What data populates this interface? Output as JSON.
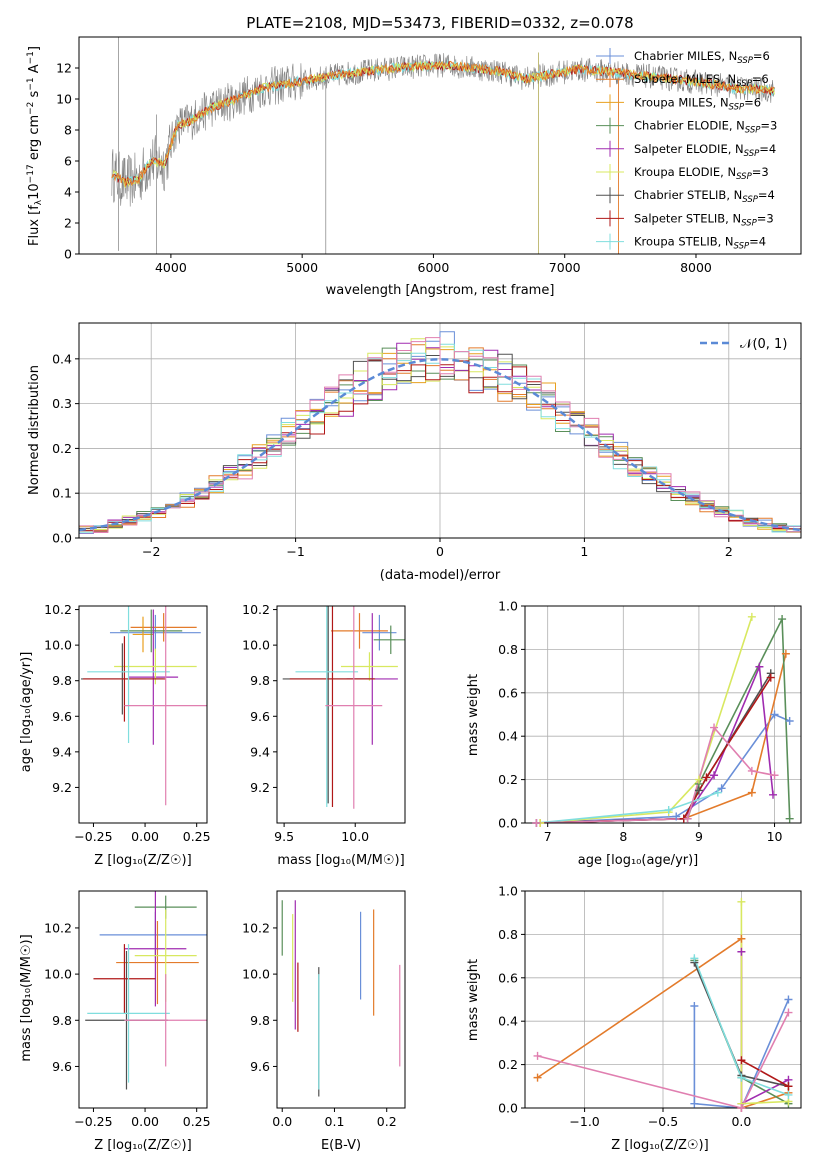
{
  "title": "PLATE=2108, MJD=53473, FIBERID=0332, z=0.078",
  "models": [
    {
      "name": "Chabrier MILES",
      "nssp": "6",
      "color": "#6a8fd8"
    },
    {
      "name": "Salpeter MILES",
      "nssp": "6",
      "color": "#e37b2b"
    },
    {
      "name": "Kroupa MILES",
      "nssp": "6",
      "color": "#e8a020"
    },
    {
      "name": "Chabrier ELODIE",
      "nssp": "3",
      "color": "#5a8f5a"
    },
    {
      "name": "Salpeter ELODIE",
      "nssp": "4",
      "color": "#a02cb0"
    },
    {
      "name": "Kroupa ELODIE",
      "nssp": "3",
      "color": "#d8e860"
    },
    {
      "name": "Chabrier STELIB",
      "nssp": "4",
      "color": "#505050"
    },
    {
      "name": "Salpeter STELIB",
      "nssp": "3",
      "color": "#b01818"
    },
    {
      "name": "Kroupa STELIB",
      "nssp": "4",
      "color": "#80dede"
    }
  ],
  "chart_data": [
    {
      "type": "line",
      "panel": "spectrum",
      "xlabel": "wavelength [Angstrom, rest frame]",
      "ylabel_main": "Flux [f",
      "ylabel_sub": "λ",
      "ylabel_mid": "10",
      "ylabel_sup1": "−17",
      "ylabel_rest": " erg cm",
      "ylabel_sup2": "−2",
      "ylabel_rest2": " s",
      "ylabel_sup3": "−1",
      "ylabel_rest3": " A",
      "ylabel_sup4": "−1",
      "ylabel_end": "]",
      "xlim": [
        3300,
        8800
      ],
      "ylim": [
        0,
        14
      ],
      "xticks": [
        4000,
        5000,
        6000,
        7000,
        8000
      ],
      "yticks": [
        0,
        2,
        4,
        6,
        8,
        10,
        12
      ],
      "model_curve": {
        "x": [
          3550,
          3650,
          3750,
          3850,
          3950,
          4050,
          4150,
          4300,
          4500,
          4700,
          4900,
          5100,
          5300,
          5500,
          5700,
          5900,
          6100,
          6300,
          6500,
          6700,
          6900,
          7100,
          7300,
          7500,
          7700,
          7900,
          8100,
          8300,
          8500,
          8600
        ],
        "y": [
          5.2,
          4.6,
          4.8,
          6.0,
          5.8,
          8.3,
          8.6,
          9.4,
          10.0,
          10.7,
          11.0,
          11.3,
          11.6,
          11.8,
          12.0,
          12.1,
          12.2,
          12.0,
          11.8,
          11.3,
          11.6,
          11.9,
          11.8,
          11.6,
          11.4,
          11.2,
          11.0,
          10.7,
          10.6,
          10.5
        ]
      }
    },
    {
      "type": "line",
      "panel": "residuals",
      "xlabel": "(data-model)/error",
      "ylabel": "Normed distribution",
      "legend_label": "𝒩(0, 1)",
      "xlim": [
        -2.5,
        2.5
      ],
      "ylim": [
        0,
        0.48
      ],
      "xticks": [
        -2,
        -1,
        0,
        1,
        2
      ],
      "xticklabels": [
        "−2",
        "−1",
        "0",
        "1",
        "2"
      ],
      "yticks": [
        0.0,
        0.1,
        0.2,
        0.3,
        0.4
      ],
      "yticklabels": [
        "0.0",
        "0.1",
        "0.2",
        "0.3",
        "0.4"
      ]
    },
    {
      "type": "scatter",
      "panel": "age-Z",
      "xlabel": "Z [log₁₀(Z/Z☉)]",
      "ylabel": "age  [log₁₀(age/yr)]",
      "xlim": [
        -0.32,
        0.3
      ],
      "ylim": [
        9.0,
        10.22
      ],
      "xticks": [
        -0.25,
        0.0,
        0.25
      ],
      "xticklabels": [
        "−0.25",
        "0.00",
        "0.25"
      ],
      "yticks": [
        9.2,
        9.4,
        9.6,
        9.8,
        10.0,
        10.2
      ],
      "yticklabels": [
        "9.2",
        "9.4",
        "9.6",
        "9.8",
        "10.0",
        "10.2"
      ],
      "points": [
        {
          "m": 0,
          "x": 0.05,
          "y": 10.07,
          "xerr": 0.22,
          "yerr": 0.1
        },
        {
          "m": 1,
          "x": 0.09,
          "y": 10.1,
          "xerr": 0.16,
          "yerr": 0.08
        },
        {
          "m": 2,
          "x": -0.01,
          "y": 10.06,
          "xerr": 0.05,
          "yerr": 0.1
        },
        {
          "m": 3,
          "x": 0.03,
          "y": 10.08,
          "xerr": 0.15,
          "yerr": 0.12
        },
        {
          "m": 4,
          "x": 0.04,
          "y": 9.82,
          "xerr": 0.12,
          "yerr": 0.38
        },
        {
          "m": 5,
          "x": 0.05,
          "y": 9.88,
          "xerr": 0.2,
          "yerr": 0.1
        },
        {
          "m": 6,
          "x": -0.11,
          "y": 9.81,
          "xerr": 0.2,
          "yerr": 0.2
        },
        {
          "m": 7,
          "x": -0.1,
          "y": 9.81,
          "xerr": 0.2,
          "yerr": 0.24
        },
        {
          "m": 8,
          "x": -0.08,
          "y": 9.85,
          "xerr": 0.2,
          "yerr": 0.4
        },
        {
          "m": 99,
          "x": 0.1,
          "y": 9.66,
          "xerr": 0.2,
          "yerr": 0.56
        }
      ]
    },
    {
      "type": "scatter",
      "panel": "age-mass",
      "xlabel": "mass [log₁₀(M/M☉)]",
      "xlim": [
        9.45,
        10.35
      ],
      "ylim": [
        9.0,
        10.22
      ],
      "xticks": [
        9.5,
        10.0
      ],
      "xticklabels": [
        "9.5",
        "10.0"
      ],
      "yticks": [
        9.2,
        9.4,
        9.6,
        9.8,
        10.0,
        10.2
      ],
      "yticklabels": [
        "9.2",
        "9.4",
        "9.6",
        "9.8",
        "10.0",
        "10.2"
      ],
      "points": [
        {
          "m": 0,
          "x": 10.17,
          "y": 10.07,
          "xerr": 0.12,
          "yerr": 0.1
        },
        {
          "m": 1,
          "x": 10.03,
          "y": 10.08,
          "xerr": 0.2,
          "yerr": 0.1
        },
        {
          "m": 3,
          "x": 10.25,
          "y": 10.03,
          "xerr": 0.12,
          "yerr": 0.08
        },
        {
          "m": 4,
          "x": 10.12,
          "y": 9.81,
          "xerr": 0.18,
          "yerr": 0.37
        },
        {
          "m": 5,
          "x": 10.1,
          "y": 9.88,
          "xerr": 0.2,
          "yerr": 0.08
        },
        {
          "m": 6,
          "x": 9.81,
          "y": 9.81,
          "xerr": 0.32,
          "yerr": 0.7
        },
        {
          "m": 7,
          "x": 9.84,
          "y": 9.81,
          "xerr": 0.3,
          "yerr": 0.72
        },
        {
          "m": 8,
          "x": 9.8,
          "y": 9.85,
          "xerr": 0.22,
          "yerr": 0.76
        },
        {
          "m": 99,
          "x": 9.99,
          "y": 9.66,
          "xerr": 0.2,
          "yerr": 0.58
        }
      ]
    },
    {
      "type": "line",
      "panel": "weight-age",
      "xlabel": "age  [log₁₀(age/yr)]",
      "ylabel": "mass weight",
      "xlim": [
        6.7,
        10.35
      ],
      "ylim": [
        0,
        1
      ],
      "xticks": [
        7,
        8,
        9,
        10
      ],
      "yticks": [
        0.0,
        0.2,
        0.4,
        0.6,
        0.8,
        1.0
      ],
      "yticklabels": [
        "0.0",
        "0.2",
        "0.4",
        "0.6",
        "0.8",
        "1.0"
      ],
      "series": [
        {
          "m": 0,
          "x": [
            6.85,
            8.7,
            9.3,
            10.0,
            10.2
          ],
          "y": [
            0.0,
            0.03,
            0.16,
            0.5,
            0.47
          ]
        },
        {
          "m": 1,
          "x": [
            6.9,
            8.8,
            9.7,
            10.15
          ],
          "y": [
            0.0,
            0.02,
            0.14,
            0.78
          ]
        },
        {
          "m": 3,
          "x": [
            6.85,
            8.85,
            9.0,
            10.1,
            10.2
          ],
          "y": [
            0.0,
            0.02,
            0.18,
            0.94,
            0.02
          ]
        },
        {
          "m": 4,
          "x": [
            6.85,
            8.8,
            9.2,
            9.8,
            9.98
          ],
          "y": [
            0.0,
            0.02,
            0.22,
            0.72,
            0.13
          ]
        },
        {
          "m": 5,
          "x": [
            6.9,
            8.6,
            9.0,
            9.7
          ],
          "y": [
            0.0,
            0.05,
            0.2,
            0.95
          ]
        },
        {
          "m": 6,
          "x": [
            6.85,
            8.8,
            9.0,
            9.95
          ],
          "y": [
            0.0,
            0.02,
            0.15,
            0.69
          ]
        },
        {
          "m": 7,
          "x": [
            6.85,
            8.8,
            9.1,
            9.95
          ],
          "y": [
            0.0,
            0.02,
            0.21,
            0.67
          ]
        },
        {
          "m": 8,
          "x": [
            6.85,
            8.6,
            9.25
          ],
          "y": [
            0.0,
            0.06,
            0.14
          ]
        },
        {
          "m": 99,
          "x": [
            6.85,
            8.85,
            9.2,
            9.7,
            10.0
          ],
          "y": [
            0.0,
            0.02,
            0.44,
            0.24,
            0.22
          ]
        }
      ]
    },
    {
      "type": "scatter",
      "panel": "mass-Z",
      "xlabel": "Z [log₁₀(Z/Z☉)]",
      "ylabel": "mass [log₁₀(M/M☉)]",
      "xlim": [
        -0.32,
        0.3
      ],
      "ylim": [
        9.42,
        10.36
      ],
      "xticks": [
        -0.25,
        0.0,
        0.25
      ],
      "xticklabels": [
        "−0.25",
        "0.00",
        "0.25"
      ],
      "yticks": [
        9.6,
        9.8,
        10.0,
        10.2
      ],
      "yticklabels": [
        "9.6",
        "9.8",
        "10.0",
        "10.2"
      ],
      "points": [
        {
          "m": 0,
          "x": 0.05,
          "y": 10.17,
          "xerr": 0.27,
          "yerr": 0.1
        },
        {
          "m": 1,
          "x": 0.06,
          "y": 10.05,
          "xerr": 0.2,
          "yerr": 0.18
        },
        {
          "m": 3,
          "x": 0.1,
          "y": 10.29,
          "xerr": 0.15,
          "yerr": 0.05
        },
        {
          "m": 4,
          "x": 0.05,
          "y": 10.11,
          "xerr": 0.15,
          "yerr": 0.25
        },
        {
          "m": 5,
          "x": 0.1,
          "y": 10.08,
          "xerr": 0.15,
          "yerr": 0.2
        },
        {
          "m": 6,
          "x": -0.09,
          "y": 9.8,
          "xerr": 0.2,
          "yerr": 0.3
        },
        {
          "m": 7,
          "x": -0.1,
          "y": 9.98,
          "xerr": 0.15,
          "yerr": 0.15
        },
        {
          "m": 8,
          "x": -0.08,
          "y": 9.83,
          "xerr": 0.2,
          "yerr": 0.3
        },
        {
          "m": 99,
          "x": 0.1,
          "y": 9.8,
          "xerr": 0.2,
          "yerr": 0.2
        }
      ]
    },
    {
      "type": "scatter",
      "panel": "mass-ebv",
      "xlabel": "E(B-V)",
      "xlim": [
        -0.01,
        0.235
      ],
      "ylim": [
        9.42,
        10.36
      ],
      "xticks": [
        0.0,
        0.1,
        0.2
      ],
      "xticklabels": [
        "0.0",
        "0.1",
        "0.2"
      ],
      "yticks": [
        9.6,
        9.8,
        10.0,
        10.2
      ],
      "yticklabels": [
        "9.6",
        "9.8",
        "10.0",
        "10.2"
      ],
      "points": [
        {
          "m": 0,
          "x": 0.15,
          "y": 10.08,
          "yerr": 0.19
        },
        {
          "m": 1,
          "x": 0.175,
          "y": 10.05,
          "yerr": 0.23
        },
        {
          "m": 3,
          "x": 0.0,
          "y": 10.2,
          "yerr": 0.12
        },
        {
          "m": 4,
          "x": 0.025,
          "y": 10.04,
          "yerr": 0.28
        },
        {
          "m": 5,
          "x": 0.02,
          "y": 10.07,
          "yerr": 0.19
        },
        {
          "m": 6,
          "x": 0.07,
          "y": 9.75,
          "yerr": 0.28
        },
        {
          "m": 7,
          "x": 0.03,
          "y": 9.9,
          "yerr": 0.15
        },
        {
          "m": 8,
          "x": 0.07,
          "y": 9.75,
          "yerr": 0.25
        },
        {
          "m": 99,
          "x": 0.225,
          "y": 9.82,
          "yerr": 0.22
        }
      ]
    },
    {
      "type": "line",
      "panel": "weight-Z",
      "xlabel": "Z [log₁₀(Z/Z☉)]",
      "ylabel": "mass weight",
      "xlim": [
        -1.38,
        0.38
      ],
      "ylim": [
        0,
        1
      ],
      "xticks": [
        -1.0,
        -0.5,
        0.0
      ],
      "xticklabels": [
        "−1.0",
        "−0.5",
        "0.0"
      ],
      "yticks": [
        0.0,
        0.2,
        0.4,
        0.6,
        0.8,
        1.0
      ],
      "yticklabels": [
        "0.0",
        "0.2",
        "0.4",
        "0.6",
        "0.8",
        "1.0"
      ],
      "series": [
        {
          "m": 0,
          "x": [
            -0.3,
            -0.3,
            0.0,
            0.3
          ],
          "y": [
            0.47,
            0.02,
            0.0,
            0.5
          ]
        },
        {
          "m": 1,
          "x": [
            -1.3,
            0.0,
            0.0,
            0.3
          ],
          "y": [
            0.14,
            0.78,
            0.0,
            0.07
          ]
        },
        {
          "m": 3,
          "x": [
            -0.3,
            0.0,
            0.3
          ],
          "y": [
            0.68,
            0.14,
            0.02
          ]
        },
        {
          "m": 4,
          "x": [
            0.0,
            0.0,
            0.3
          ],
          "y": [
            0.72,
            0.02,
            0.13
          ]
        },
        {
          "m": 5,
          "x": [
            0.0,
            0.0,
            0.3
          ],
          "y": [
            0.95,
            0.02,
            0.03
          ]
        },
        {
          "m": 6,
          "x": [
            -0.3,
            0.0,
            0.3
          ],
          "y": [
            0.67,
            0.15,
            0.1
          ]
        },
        {
          "m": 7,
          "x": [
            0.0,
            0.3
          ],
          "y": [
            0.22,
            0.1
          ]
        },
        {
          "m": 8,
          "x": [
            -0.3,
            0.0,
            0.3
          ],
          "y": [
            0.69,
            0.14,
            0.06
          ]
        },
        {
          "m": 99,
          "x": [
            -1.3,
            0.0,
            0.3
          ],
          "y": [
            0.24,
            0.0,
            0.44
          ]
        }
      ]
    }
  ]
}
